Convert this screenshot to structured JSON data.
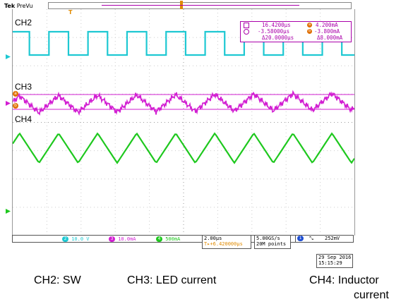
{
  "brand": {
    "name": "Tek",
    "mode": "PreVu"
  },
  "channels": {
    "ch2": {
      "label": "CH2",
      "color": "#1ec8d2",
      "scale": "10.0 V"
    },
    "ch3": {
      "label": "CH3",
      "color": "#d21ed2",
      "scale": "10.0mA"
    },
    "ch4": {
      "label": "CH4",
      "color": "#1ec81e",
      "scale": "500mA"
    }
  },
  "measurements": {
    "time_a": "16.4200µs",
    "current_a": "4.200mA",
    "time_b": "-3.58000µs",
    "current_b": "-3.800mA",
    "delta_time": "Δ20.0000µs",
    "delta_current": "Δ8.000mA"
  },
  "status_bar": {
    "ch2_num": "2",
    "ch2_scale": "10.0 V",
    "ch3_num": "3",
    "ch3_scale": "10.0mA",
    "ch4_num": "4",
    "ch4_scale": "500mA",
    "timebase": "2.00µs",
    "trigger_pos": "T▸+6.420000µs",
    "sample_rate": "5.00GS/s",
    "record_length": "20M points",
    "trigger_ch": "1",
    "trigger_slope": "⤡",
    "trigger_level": "252mV"
  },
  "datetime": {
    "date": "29 Sep 2016",
    "time": "15:15:29"
  },
  "captions": {
    "ch2": "CH2: SW",
    "ch3": "CH3: LED current",
    "ch4_line1": "CH4: Inductor",
    "ch4_line2": "current"
  },
  "markers": {
    "trigger": "T",
    "cursor_a": "a",
    "cursor_b": "b"
  },
  "icons": {
    "trigger_marker": "trigger-t-icon",
    "cursor_square": "square-cursor-icon",
    "cursor_circle": "circle-cursor-icon"
  }
}
